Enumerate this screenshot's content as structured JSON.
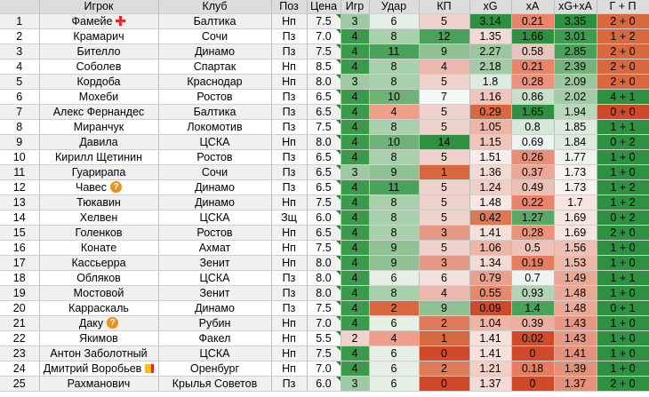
{
  "headers": [
    "",
    "Игрок",
    "Клуб",
    "Поз",
    "Цена",
    "Игр",
    "Удар",
    "КП",
    "xG",
    "xA",
    "xG+xA",
    "Г + П"
  ],
  "rows": [
    {
      "n": "1",
      "player": "Фамейе",
      "icon": "red-cross-icon",
      "club": "Балтика",
      "pos": "Нп",
      "price": "7.5",
      "games": "3",
      "shots": "6",
      "kp": "5",
      "xg": "3.14",
      "xa": "0.21",
      "xgxa": "3.35",
      "gp": "2 + 0",
      "c": {
        "games": "#9ec9a2",
        "shots": "#e5efe6",
        "kp": "#eed2cb",
        "xg": "#2e9142",
        "xa": "#e9846a",
        "xgxa": "#2e9142",
        "gp": "#d8683f"
      }
    },
    {
      "n": "2",
      "player": "Крамарич",
      "icon": "",
      "club": "Сочи",
      "pos": "Пз",
      "price": "7.0",
      "games": "4",
      "shots": "8",
      "kp": "12",
      "xg": "1.35",
      "xa": "1.66",
      "xgxa": "3.01",
      "gp": "1 + 2",
      "c": {
        "games": "#3c9a4c",
        "shots": "#a9d0ac",
        "kp": "#4aa15a",
        "xg": "#f3dad4",
        "xa": "#2e9142",
        "xgxa": "#3e9c4e",
        "gp": "#d8683f"
      }
    },
    {
      "n": "3",
      "player": "Бителло",
      "icon": "",
      "club": "Динамо",
      "pos": "Пз",
      "price": "7.5",
      "games": "4",
      "shots": "11",
      "kp": "9",
      "xg": "2.27",
      "xa": "0.58",
      "xgxa": "2.85",
      "gp": "2 + 0",
      "c": {
        "games": "#3c9a4c",
        "shots": "#4aa15a",
        "kp": "#8fc194",
        "xg": "#9ac79e",
        "xa": "#e9c6bd",
        "xgxa": "#4aa15a",
        "gp": "#d8683f"
      }
    },
    {
      "n": "4",
      "player": "Соболев",
      "icon": "",
      "club": "Спартак",
      "pos": "Нп",
      "price": "8.5",
      "games": "4",
      "shots": "8",
      "kp": "4",
      "xg": "2.18",
      "xa": "0.21",
      "xgxa": "2.39",
      "gp": "2 + 0",
      "c": {
        "games": "#3c9a4c",
        "shots": "#a9d0ac",
        "kp": "#eab8ac",
        "xg": "#a3cca6",
        "xa": "#e9846a",
        "xgxa": "#74b47b",
        "gp": "#d8683f"
      }
    },
    {
      "n": "5",
      "player": "Кордоба",
      "icon": "",
      "club": "Краснодар",
      "pos": "Нп",
      "price": "8.0",
      "games": "3",
      "shots": "8",
      "kp": "5",
      "xg": "1.8",
      "xa": "0.28",
      "xgxa": "2.09",
      "gp": "2 + 0",
      "c": {
        "games": "#9ec9a2",
        "shots": "#a9d0ac",
        "kp": "#eed2cb",
        "xg": "#dcebdd",
        "xa": "#ea927b",
        "xgxa": "#9ac79e",
        "gp": "#d8683f"
      }
    },
    {
      "n": "6",
      "player": "Мохеби",
      "icon": "",
      "club": "Ростов",
      "pos": "Пз",
      "price": "6.5",
      "games": "4",
      "shots": "10",
      "kp": "7",
      "xg": "1.16",
      "xa": "0.86",
      "xgxa": "2.02",
      "gp": "4 + 1",
      "c": {
        "games": "#3c9a4c",
        "shots": "#6fb176",
        "kp": "#f4f7f4",
        "xg": "#f1c5ba",
        "xa": "#c7e0c9",
        "xgxa": "#a3cca6",
        "gp": "#2e9142"
      }
    },
    {
      "n": "7",
      "player": "Алекс Фернандес",
      "icon": "",
      "club": "Балтика",
      "pos": "Пз",
      "price": "6.5",
      "games": "4",
      "shots": "4",
      "kp": "5",
      "xg": "0.29",
      "xa": "1.65",
      "xgxa": "1.94",
      "gp": "0 + 0",
      "c": {
        "games": "#3c9a4c",
        "shots": "#ee9e89",
        "kp": "#eed2cb",
        "xg": "#d8683f",
        "xa": "#2e9142",
        "xgxa": "#b8d8bb",
        "gp": "#cf4a2a"
      }
    },
    {
      "n": "8",
      "player": "Миранчук",
      "icon": "",
      "club": "Локомотив",
      "pos": "Пз",
      "price": "7.5",
      "games": "4",
      "shots": "8",
      "kp": "5",
      "xg": "1.05",
      "xa": "0.8",
      "xgxa": "1.85",
      "gp": "1 + 1",
      "c": {
        "games": "#3c9a4c",
        "shots": "#a9d0ac",
        "kp": "#eed2cb",
        "xg": "#eeb5a6",
        "xa": "#d6e8d7",
        "xgxa": "#dcebdd",
        "gp": "#2e9142"
      }
    },
    {
      "n": "9",
      "player": "Давила",
      "icon": "",
      "club": "ЦСКА",
      "pos": "Нп",
      "price": "8.0",
      "games": "4",
      "shots": "10",
      "kp": "14",
      "xg": "1.15",
      "xa": "0.69",
      "xgxa": "1.84",
      "gp": "0 + 2",
      "c": {
        "games": "#3c9a4c",
        "shots": "#6fb176",
        "kp": "#2e9142",
        "xg": "#f1c5ba",
        "xa": "#f0f4f0",
        "xgxa": "#dcebdd",
        "gp": "#2e9142"
      }
    },
    {
      "n": "10",
      "player": "Кирилл Щетинин",
      "icon": "",
      "club": "Ростов",
      "pos": "Пз",
      "price": "6.5",
      "games": "4",
      "shots": "8",
      "kp": "5",
      "xg": "1.51",
      "xa": "0.26",
      "xgxa": "1.77",
      "gp": "1 + 0",
      "c": {
        "games": "#3c9a4c",
        "shots": "#a9d0ac",
        "kp": "#eed2cb",
        "xg": "#f7ece9",
        "xa": "#ea8f77",
        "xgxa": "#eef3ee",
        "gp": "#2e9142"
      }
    },
    {
      "n": "11",
      "player": "Гуарирапа",
      "icon": "",
      "club": "Сочи",
      "pos": "Пз",
      "price": "6.5",
      "games": "3",
      "shots": "9",
      "kp": "1",
      "xg": "1.36",
      "xa": "0.37",
      "xgxa": "1.73",
      "gp": "1 + 0",
      "c": {
        "games": "#9ec9a2",
        "shots": "#8fc194",
        "kp": "#d8683f",
        "xg": "#f3dad4",
        "xa": "#eba896",
        "xgxa": "#f7f2f0",
        "gp": "#2e9142"
      }
    },
    {
      "n": "12",
      "player": "Чавес",
      "icon": "question-icon",
      "club": "Динамо",
      "pos": "Пз",
      "price": "6.5",
      "games": "4",
      "shots": "11",
      "kp": "5",
      "xg": "1.24",
      "xa": "0.49",
      "xgxa": "1.73",
      "gp": "1 + 2",
      "c": {
        "games": "#3c9a4c",
        "shots": "#4aa15a",
        "kp": "#eed2cb",
        "xg": "#f2cec5",
        "xa": "#eec0b4",
        "xgxa": "#f7f2f0",
        "gp": "#2e9142"
      }
    },
    {
      "n": "13",
      "player": "Тюкавин",
      "icon": "",
      "club": "Динамо",
      "pos": "Нп",
      "price": "7.5",
      "games": "4",
      "shots": "8",
      "kp": "5",
      "xg": "1.48",
      "xa": "0.22",
      "xgxa": "1.7",
      "gp": "1 + 2",
      "c": {
        "games": "#3c9a4c",
        "shots": "#a9d0ac",
        "kp": "#eed2cb",
        "xg": "#f7e6e1",
        "xa": "#e9846a",
        "xgxa": "#f5e4df",
        "gp": "#2e9142"
      }
    },
    {
      "n": "14",
      "player": "Хелвен",
      "icon": "",
      "club": "ЦСКА",
      "pos": "Зщ",
      "price": "6.0",
      "games": "4",
      "shots": "8",
      "kp": "5",
      "xg": "0.42",
      "xa": "1.27",
      "xgxa": "1.69",
      "gp": "0 + 2",
      "c": {
        "games": "#3c9a4c",
        "shots": "#a9d0ac",
        "kp": "#eed2cb",
        "xg": "#dd7754",
        "xa": "#5aa866",
        "xgxa": "#f5e4df",
        "gp": "#2e9142"
      }
    },
    {
      "n": "15",
      "player": "Голенков",
      "icon": "",
      "club": "Ростов",
      "pos": "Нп",
      "price": "6.5",
      "games": "4",
      "shots": "8",
      "kp": "3",
      "xg": "1.41",
      "xa": "0.28",
      "xgxa": "1.69",
      "gp": "2 + 0",
      "c": {
        "games": "#3c9a4c",
        "shots": "#a9d0ac",
        "kp": "#e59a86",
        "xg": "#f5e0da",
        "xa": "#ea927b",
        "xgxa": "#f5e4df",
        "gp": "#2e9142"
      }
    },
    {
      "n": "16",
      "player": "Конате",
      "icon": "",
      "club": "Ахмат",
      "pos": "Нп",
      "price": "7.5",
      "games": "4",
      "shots": "9",
      "kp": "5",
      "xg": "1.06",
      "xa": "0.5",
      "xgxa": "1.56",
      "gp": "1 + 0",
      "c": {
        "games": "#3c9a4c",
        "shots": "#8fc194",
        "kp": "#eed2cb",
        "xg": "#eeb5a6",
        "xa": "#eec2b6",
        "xgxa": "#efbfb3",
        "gp": "#2e9142"
      }
    },
    {
      "n": "17",
      "player": "Кассьерра",
      "icon": "",
      "club": "Зенит",
      "pos": "Нп",
      "price": "8.0",
      "games": "4",
      "shots": "9",
      "kp": "3",
      "xg": "1.34",
      "xa": "0.19",
      "xgxa": "1.53",
      "gp": "1 + 0",
      "c": {
        "games": "#3c9a4c",
        "shots": "#8fc194",
        "kp": "#e59a86",
        "xg": "#f3dad4",
        "xa": "#e67d61",
        "xgxa": "#edb7a9",
        "gp": "#2e9142"
      }
    },
    {
      "n": "18",
      "player": "Обляков",
      "icon": "",
      "club": "ЦСКА",
      "pos": "Пз",
      "price": "8.0",
      "games": "4",
      "shots": "6",
      "kp": "6",
      "xg": "0.79",
      "xa": "0.7",
      "xgxa": "1.49",
      "gp": "1 + 1",
      "c": {
        "games": "#3c9a4c",
        "shots": "#e5efe6",
        "kp": "#f3e3df",
        "xg": "#eaa08b",
        "xa": "#f0f4f0",
        "xgxa": "#eaa896",
        "gp": "#2e9142"
      }
    },
    {
      "n": "19",
      "player": "Мостовой",
      "icon": "",
      "club": "Зенит",
      "pos": "Пз",
      "price": "8.0",
      "games": "4",
      "shots": "8",
      "kp": "4",
      "xg": "0.55",
      "xa": "0.93",
      "xgxa": "1.48",
      "gp": "1 + 0",
      "c": {
        "games": "#3c9a4c",
        "shots": "#a9d0ac",
        "kp": "#eab8ac",
        "xg": "#e3896c",
        "xa": "#b2d4b5",
        "xgxa": "#eaa896",
        "gp": "#2e9142"
      }
    },
    {
      "n": "20",
      "player": "Карраскаль",
      "icon": "",
      "club": "Динамо",
      "pos": "Пз",
      "price": "7.5",
      "games": "4",
      "shots": "2",
      "kp": "9",
      "xg": "0.09",
      "xa": "1.4",
      "xgxa": "1.48",
      "gp": "0 + 1",
      "c": {
        "games": "#3c9a4c",
        "shots": "#d8683f",
        "kp": "#8fc194",
        "xg": "#cf4a2a",
        "xa": "#4aa15a",
        "xgxa": "#eaa896",
        "gp": "#2e9142"
      }
    },
    {
      "n": "21",
      "player": "Даку",
      "icon": "question-icon",
      "club": "Рубин",
      "pos": "Нп",
      "price": "7.0",
      "games": "4",
      "shots": "6",
      "kp": "2",
      "xg": "1.04",
      "xa": "0.39",
      "xgxa": "1.43",
      "gp": "1 + 0",
      "c": {
        "games": "#3c9a4c",
        "shots": "#e5efe6",
        "kp": "#de7b5b",
        "xg": "#eeb5a6",
        "xa": "#ecaf9f",
        "xgxa": "#e69884",
        "gp": "#2e9142"
      }
    },
    {
      "n": "22",
      "player": "Якимов",
      "icon": "",
      "club": "Факел",
      "pos": "Нп",
      "price": "5.5",
      "games": "2",
      "shots": "4",
      "kp": "1",
      "xg": "1.41",
      "xa": "0.02",
      "xgxa": "1.43",
      "gp": "1 + 0",
      "c": {
        "games": "#f1d3cb",
        "shots": "#ee9e89",
        "kp": "#d8683f",
        "xg": "#f5e0da",
        "xa": "#cf4a2a",
        "xgxa": "#e69884",
        "gp": "#2e9142"
      }
    },
    {
      "n": "23",
      "player": "Антон Заболотный",
      "icon": "",
      "club": "ЦСКА",
      "pos": "Нп",
      "price": "7.5",
      "games": "4",
      "shots": "6",
      "kp": "0",
      "xg": "1.41",
      "xa": "0",
      "xgxa": "1.41",
      "gp": "1 + 0",
      "c": {
        "games": "#3c9a4c",
        "shots": "#e5efe6",
        "kp": "#cf4a2a",
        "xg": "#f5e0da",
        "xa": "#cf4a2a",
        "xgxa": "#e4917b",
        "gp": "#2e9142"
      }
    },
    {
      "n": "24",
      "player": "Дмитрий Воробьев",
      "icon": "yellow-red-card-icon",
      "club": "Оренбург",
      "pos": "Нп",
      "price": "7.0",
      "games": "4",
      "shots": "6",
      "kp": "2",
      "xg": "1.21",
      "xa": "0.18",
      "xgxa": "1.39",
      "gp": "1 + 0",
      "c": {
        "games": "#3c9a4c",
        "shots": "#e5efe6",
        "kp": "#de7b5b",
        "xg": "#f2cec5",
        "xa": "#e67d61",
        "xgxa": "#e4917b",
        "gp": "#2e9142"
      }
    },
    {
      "n": "25",
      "player": "Рахманович",
      "icon": "",
      "club": "Крылья Советов",
      "pos": "Пз",
      "price": "6.0",
      "games": "3",
      "shots": "6",
      "kp": "0",
      "xg": "1.37",
      "xa": "0",
      "xgxa": "1.37",
      "gp": "2 + 0",
      "c": {
        "games": "#9ec9a2",
        "shots": "#e5efe6",
        "kp": "#cf4a2a",
        "xg": "#f3dad4",
        "xa": "#cf4a2a",
        "xgxa": "#e4917b",
        "gp": "#2e9142"
      }
    }
  ]
}
